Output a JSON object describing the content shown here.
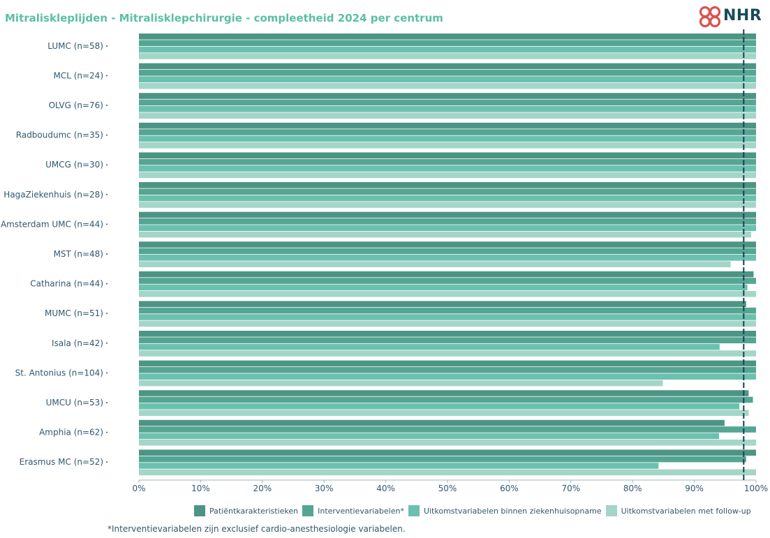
{
  "title": "Mitraliskleplijden - Mitralisklepchirurgie - compleetheid 2024 per centrum",
  "logo": {
    "text": "NHR"
  },
  "footnote": "*Interventievariabelen zijn exclusief cardio-anesthesiologie variabelen.",
  "colors": {
    "series": [
      "#4c9584",
      "#55a593",
      "#6cc1ae",
      "#a3d6c8"
    ],
    "axis_text": "#2f5870",
    "reference_line": "#1d3d52",
    "title": "#5bbfa6"
  },
  "chart_data": {
    "type": "bar",
    "orientation": "horizontal",
    "title": "Mitraliskleplijden - Mitralisklepchirurgie - compleetheid 2024 per centrum",
    "categories": [
      "LUMC (n=58)",
      "MCL (n=24)",
      "OLVG (n=76)",
      "Radboudumc (n=35)",
      "UMCG (n=30)",
      "HagaZiekenhuis (n=28)",
      "Amsterdam UMC (n=44)",
      "MST (n=48)",
      "Catharina (n=44)",
      "MUMC (n=51)",
      "Isala (n=42)",
      "St. Antonius (n=104)",
      "UMCU (n=53)",
      "Amphia (n=62)",
      "Erasmus MC (n=52)"
    ],
    "series": [
      {
        "name": "Patiëntkarakteristieken",
        "values": [
          100,
          100,
          100,
          100,
          100,
          100,
          100,
          100,
          99.6,
          98.4,
          100,
          100,
          98.8,
          94.9,
          100
        ]
      },
      {
        "name": "Interventievariabelen*",
        "values": [
          100,
          100,
          100,
          100,
          100,
          100,
          100,
          100,
          100,
          100,
          100,
          100,
          99.5,
          100,
          98.4
        ]
      },
      {
        "name": "Uitkomstvariabelen binnen ziekenhuisopname",
        "values": [
          100,
          100,
          100,
          100,
          100,
          100,
          100,
          100,
          98.6,
          100,
          94.1,
          100,
          97.3,
          94.0,
          84.2
        ]
      },
      {
        "name": "Uitkomstvariabelen met follow-up",
        "values": [
          100,
          100,
          100,
          100,
          100,
          100,
          99.2,
          95.9,
          100,
          100,
          100,
          84.9,
          98.8,
          100,
          100
        ]
      }
    ],
    "xlim": [
      0,
      100
    ],
    "x_ticks": [
      "0%",
      "10%",
      "20%",
      "30%",
      "40%",
      "50%",
      "60%",
      "70%",
      "80%",
      "90%",
      "100%"
    ],
    "reference_line": 98,
    "grid": false,
    "legend_position": "bottom"
  }
}
